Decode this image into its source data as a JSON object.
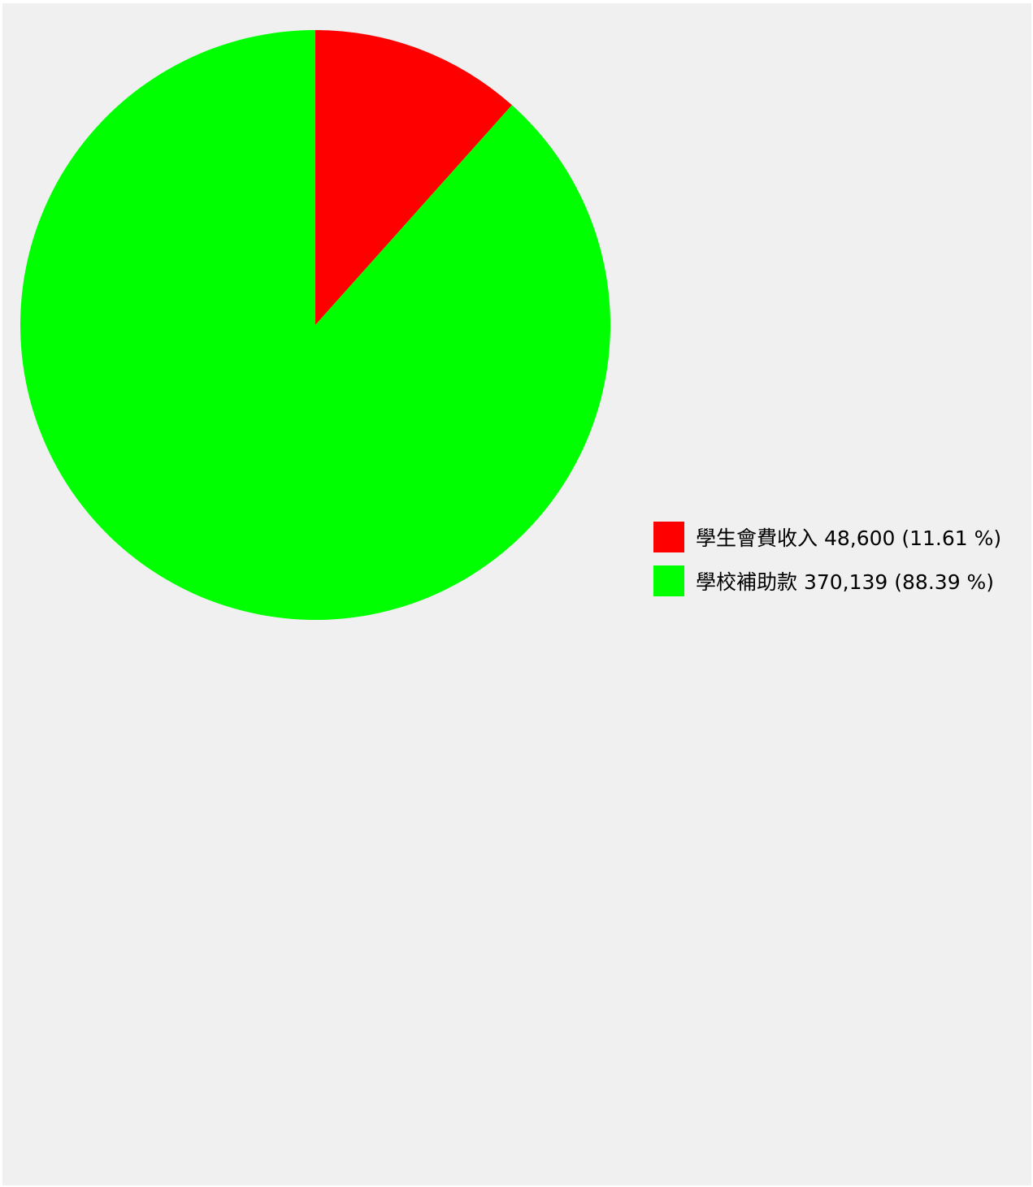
{
  "chart_data": {
    "type": "pie",
    "start_angle": "top",
    "direction": "clockwise",
    "slices": [
      {
        "label": "學生會費收入 48,600 (11.61 %)",
        "value": 48600,
        "percent": 11.61,
        "color": "#ff0000"
      },
      {
        "label": "學校補助款 370,139 (88.39 %)",
        "value": 370139,
        "percent": 88.39,
        "color": "#00ff00"
      }
    ],
    "legend_placement": "right"
  }
}
